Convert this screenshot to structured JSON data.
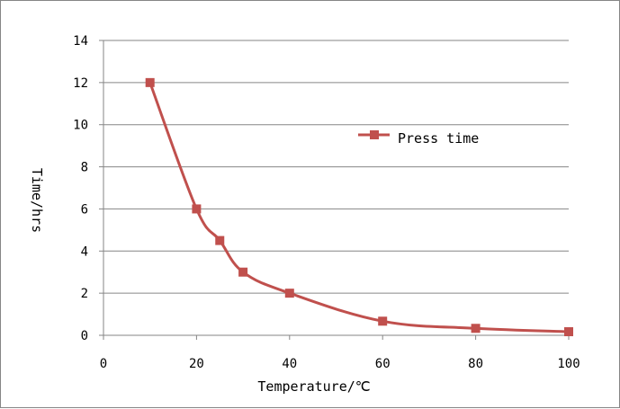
{
  "chart_data": {
    "type": "scatter",
    "xlabel": "Temperature/℃",
    "ylabel": "Time/hrs",
    "xlim": [
      0,
      100
    ],
    "ylim": [
      0,
      14
    ],
    "xticks": [
      0,
      20,
      40,
      60,
      80,
      100
    ],
    "yticks": [
      0,
      2,
      4,
      6,
      8,
      10,
      12,
      14
    ],
    "grid": "horizontal",
    "legend_position": "right",
    "series": [
      {
        "name": "Press time",
        "color": "#C0504D",
        "marker": "square",
        "line": "smooth",
        "x": [
          10,
          20,
          25,
          30,
          40,
          60,
          80,
          100
        ],
        "y": [
          12,
          6,
          4.5,
          3,
          2,
          0.67,
          0.33,
          0.17
        ]
      }
    ]
  }
}
